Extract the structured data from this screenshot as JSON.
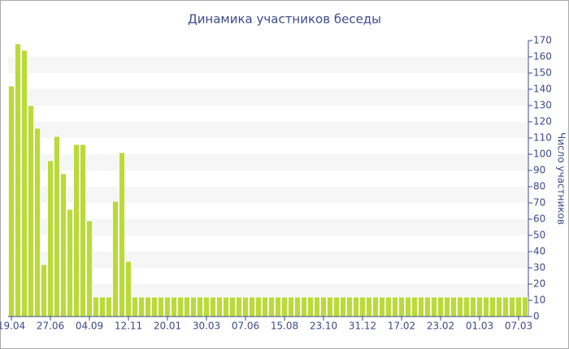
{
  "chart_data": {
    "type": "bar",
    "title": "Динамика участников беседы",
    "y_label": "Число участников",
    "categories": [
      "19.04",
      null,
      null,
      null,
      null,
      null,
      "27.06",
      null,
      null,
      null,
      null,
      null,
      "04.09",
      null,
      null,
      null,
      null,
      null,
      "12.11",
      null,
      null,
      null,
      null,
      null,
      "20.01",
      null,
      null,
      null,
      null,
      null,
      "30.03",
      null,
      null,
      null,
      null,
      null,
      "07.06",
      null,
      null,
      null,
      null,
      null,
      "15.08",
      null,
      null,
      null,
      null,
      null,
      "23.10",
      null,
      null,
      null,
      null,
      null,
      "31.12",
      null,
      null,
      null,
      null,
      null,
      "17.02",
      null,
      null,
      null,
      null,
      null,
      "23.02",
      null,
      null,
      null,
      null,
      null,
      "01.03",
      null,
      null,
      null,
      null,
      null,
      "07.03",
      null
    ],
    "values": [
      142,
      168,
      164,
      130,
      116,
      32,
      96,
      111,
      88,
      66,
      106,
      106,
      59,
      12,
      12,
      12,
      71,
      101,
      34,
      12,
      12,
      12,
      12,
      12,
      12,
      12,
      12,
      12,
      12,
      12,
      12,
      12,
      12,
      12,
      12,
      12,
      12,
      12,
      12,
      12,
      12,
      12,
      12,
      12,
      12,
      12,
      12,
      12,
      12,
      12,
      12,
      12,
      12,
      12,
      12,
      12,
      12,
      12,
      12,
      12,
      12,
      12,
      12,
      12,
      12,
      12,
      12,
      12,
      12,
      12,
      12,
      12,
      12,
      12,
      12,
      12,
      12,
      12,
      12,
      12
    ],
    "color": "#bada3a",
    "ylim": [
      0,
      170
    ],
    "yticks": [
      0,
      10,
      20,
      30,
      40,
      50,
      60,
      70,
      80,
      90,
      100,
      110,
      120,
      130,
      140,
      150,
      160,
      170
    ],
    "y_axis_side": "right",
    "banded_grid": true
  }
}
